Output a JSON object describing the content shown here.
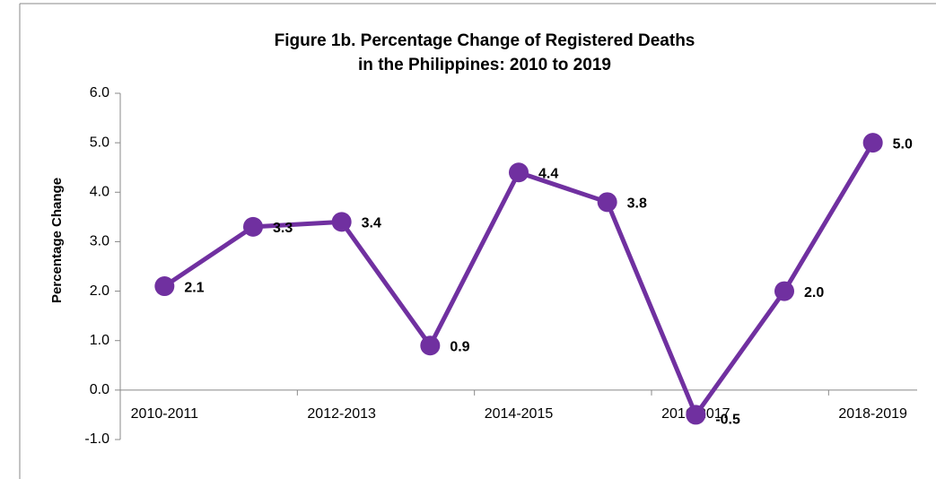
{
  "chart_data": {
    "type": "line",
    "title": "Figure 1b.  Percentage Change of Registered Deaths",
    "subtitle": "in the Philippines: 2010 to 2019",
    "y_label": "Percentage Change",
    "categories": [
      "2010-2011",
      null,
      "2012-2013",
      null,
      "2014-2015",
      null,
      "2016-2017",
      null,
      "2018-2019"
    ],
    "series": [
      {
        "name": "Percentage Change",
        "color": "#7030a0",
        "values": [
          2.1,
          3.3,
          3.4,
          0.9,
          4.4,
          3.8,
          -0.5,
          2.0,
          5.0
        ],
        "value_labels": [
          "2.1",
          "3.3",
          "3.4",
          "0.9",
          "4.4",
          "3.8",
          "-0.5",
          "2.0",
          "5.0"
        ]
      }
    ],
    "negative_label_color": "#ff0000",
    "ylim": [
      -1,
      6
    ],
    "yticks": [
      {
        "value": -1,
        "label": "-1.0"
      },
      {
        "value": 0,
        "label": "0.0"
      },
      {
        "value": 1,
        "label": "1.0"
      },
      {
        "value": 2,
        "label": "2.0"
      },
      {
        "value": 3,
        "label": "3.0"
      },
      {
        "value": 4,
        "label": "4.0"
      },
      {
        "value": 5,
        "label": "5.0"
      },
      {
        "value": 6,
        "label": "6.0"
      }
    ],
    "grid": false
  }
}
